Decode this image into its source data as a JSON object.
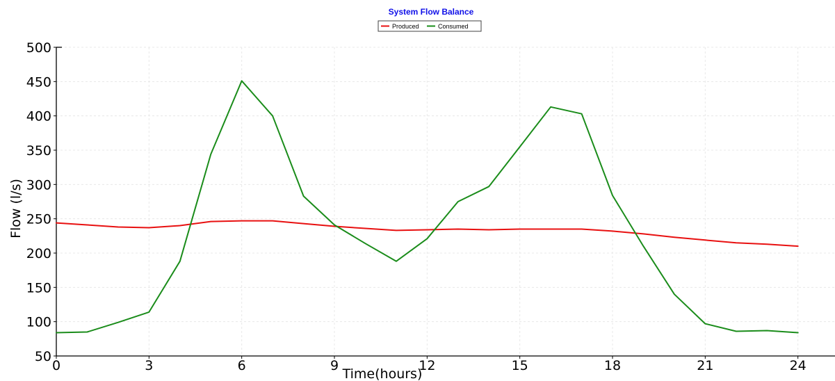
{
  "chart_data": {
    "type": "line",
    "title": "System Flow Balance",
    "xlabel": "Time(hours)",
    "ylabel": "Flow (l/s)",
    "xlim": [
      0,
      25.2
    ],
    "ylim": [
      50,
      500
    ],
    "xticks": [
      0,
      3,
      6,
      9,
      12,
      15,
      18,
      21,
      24
    ],
    "yticks": [
      50,
      100,
      150,
      200,
      250,
      300,
      350,
      400,
      450,
      500
    ],
    "grid": true,
    "legend": "top-center",
    "series": [
      {
        "name": "Produced",
        "color": "#e81010",
        "x": [
          0,
          1,
          2,
          3,
          4,
          5,
          6,
          7,
          8,
          9,
          10,
          11,
          12,
          13,
          14,
          15,
          16,
          17,
          18,
          19,
          20,
          21,
          22,
          23,
          24
        ],
        "y": [
          244,
          241,
          238,
          237,
          240,
          246,
          247,
          247,
          243,
          239,
          236,
          233,
          234,
          235,
          234,
          235,
          235,
          235,
          232,
          228,
          223,
          219,
          215,
          213,
          210
        ]
      },
      {
        "name": "Consumed",
        "color": "#1a8c1a",
        "x": [
          0,
          1,
          2,
          3,
          4,
          5,
          6,
          7,
          8,
          9,
          10,
          11,
          12,
          13,
          14,
          15,
          16,
          17,
          18,
          19,
          20,
          21,
          22,
          23,
          24
        ],
        "y": [
          84,
          85,
          99,
          114,
          188,
          344,
          451,
          400,
          283,
          241,
          214,
          188,
          221,
          275,
          297,
          355,
          413,
          403,
          284,
          210,
          140,
          97,
          86,
          87,
          84
        ]
      }
    ]
  }
}
